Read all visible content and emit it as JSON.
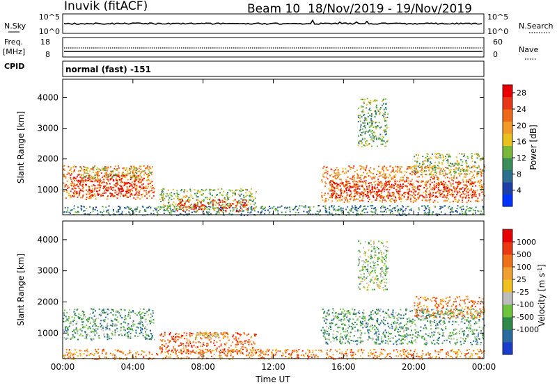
{
  "header": {
    "station": "Inuvik (fitACF)",
    "beam": "Beam 10",
    "date_range": "18/Nov/2019 - 19/Nov/2019"
  },
  "info_panels": {
    "nsky_label": "N.Sky",
    "nsky_ticks": [
      "10^5",
      "10^0"
    ],
    "nsearch_label": "N.Search",
    "nsearch_ticks": [
      "10^5",
      "10^0"
    ],
    "freq_label_top": "Freq.",
    "freq_label_bottom": "[MHz]",
    "freq_ticks": [
      "18",
      "8"
    ],
    "nave_label": "Nave",
    "nave_ticks": [
      "60",
      "0"
    ],
    "cpid_label": "CPID",
    "cpid_value": "normal (fast) -151"
  },
  "chart_data": [
    {
      "type": "heatmap",
      "title": "",
      "xlabel": "Time UT",
      "ylabel": "Slant Range [km]",
      "xticks": [
        "00:00",
        "04:00",
        "08:00",
        "12:00",
        "16:00",
        "20:00",
        "00:00"
      ],
      "xlim": [
        0,
        24
      ],
      "yticks": [
        "1000",
        "2000",
        "3000",
        "4000"
      ],
      "ylim": [
        180,
        4600
      ],
      "grid": false,
      "colorbar": {
        "label": "Power [dB]",
        "ticks": [
          "4",
          "8",
          "12",
          "16",
          "20",
          "24",
          "28"
        ],
        "range": [
          0,
          30
        ],
        "colors": [
          "#0033ff",
          "#1f3fa8",
          "#2e6e8e",
          "#3a8e5a",
          "#7ab83a",
          "#e8c020",
          "#f29a28",
          "#ee6a18",
          "#e83818",
          "#e80000"
        ]
      },
      "regions": [
        {
          "t": [
            0.0,
            5.2
          ],
          "r": [
            700,
            1800
          ],
          "level": 0.72
        },
        {
          "t": [
            0.4,
            4.6
          ],
          "r": [
            800,
            1500
          ],
          "level": 0.92
        },
        {
          "t": [
            1.0,
            5.0
          ],
          "r": [
            1400,
            1750
          ],
          "level": 0.5
        },
        {
          "t": [
            0.0,
            24.0
          ],
          "r": [
            180,
            500
          ],
          "level": 0.3
        },
        {
          "t": [
            5.5,
            11.0
          ],
          "r": [
            350,
            1050
          ],
          "level": 0.45
        },
        {
          "t": [
            6.5,
            10.5
          ],
          "r": [
            300,
            700
          ],
          "level": 0.85
        },
        {
          "t": [
            14.7,
            24.0
          ],
          "r": [
            600,
            1800
          ],
          "level": 0.7
        },
        {
          "t": [
            15.2,
            23.5
          ],
          "r": [
            750,
            1300
          ],
          "level": 0.9
        },
        {
          "t": [
            16.8,
            18.5
          ],
          "r": [
            2400,
            4000
          ],
          "level": 0.4
        },
        {
          "t": [
            20.0,
            24.0
          ],
          "r": [
            1500,
            2200
          ],
          "level": 0.45
        }
      ]
    },
    {
      "type": "heatmap",
      "title": "",
      "xlabel": "Time UT",
      "ylabel": "Slant Range [km]",
      "xticks": [
        "00:00",
        "04:00",
        "08:00",
        "12:00",
        "16:00",
        "20:00",
        "00:00"
      ],
      "xlim": [
        0,
        24
      ],
      "yticks": [
        "1000",
        "2000",
        "3000",
        "4000"
      ],
      "ylim": [
        180,
        4600
      ],
      "grid": false,
      "colorbar": {
        "label": "Velocity [m s^-1]",
        "ticks": [
          "1000",
          "500",
          "100",
          "25",
          "-25",
          "-100",
          "-500",
          "-1000"
        ],
        "colors": [
          "#1c3ccc",
          "#2a6aa0",
          "#2e8a48",
          "#6ec43c",
          "#bcbcbc",
          "#f0c020",
          "#f0a030",
          "#ee7018",
          "#ea3a14",
          "#e80000"
        ]
      },
      "regions": [
        {
          "t": [
            0.0,
            5.2
          ],
          "r": [
            800,
            1800
          ],
          "level": 0.3
        },
        {
          "t": [
            0.0,
            24.0
          ],
          "r": [
            180,
            500
          ],
          "level": 0.7
        },
        {
          "t": [
            5.5,
            11.0
          ],
          "r": [
            350,
            1050
          ],
          "level": 0.78
        },
        {
          "t": [
            7.5,
            9.5
          ],
          "r": [
            850,
            1050
          ],
          "level": 0.55
        },
        {
          "t": [
            14.7,
            24.0
          ],
          "r": [
            650,
            1800
          ],
          "level": 0.3
        },
        {
          "t": [
            16.8,
            18.5
          ],
          "r": [
            2400,
            4000
          ],
          "level": 0.4
        },
        {
          "t": [
            20.0,
            24.0
          ],
          "r": [
            1500,
            2200
          ],
          "level": 0.7
        }
      ]
    }
  ]
}
